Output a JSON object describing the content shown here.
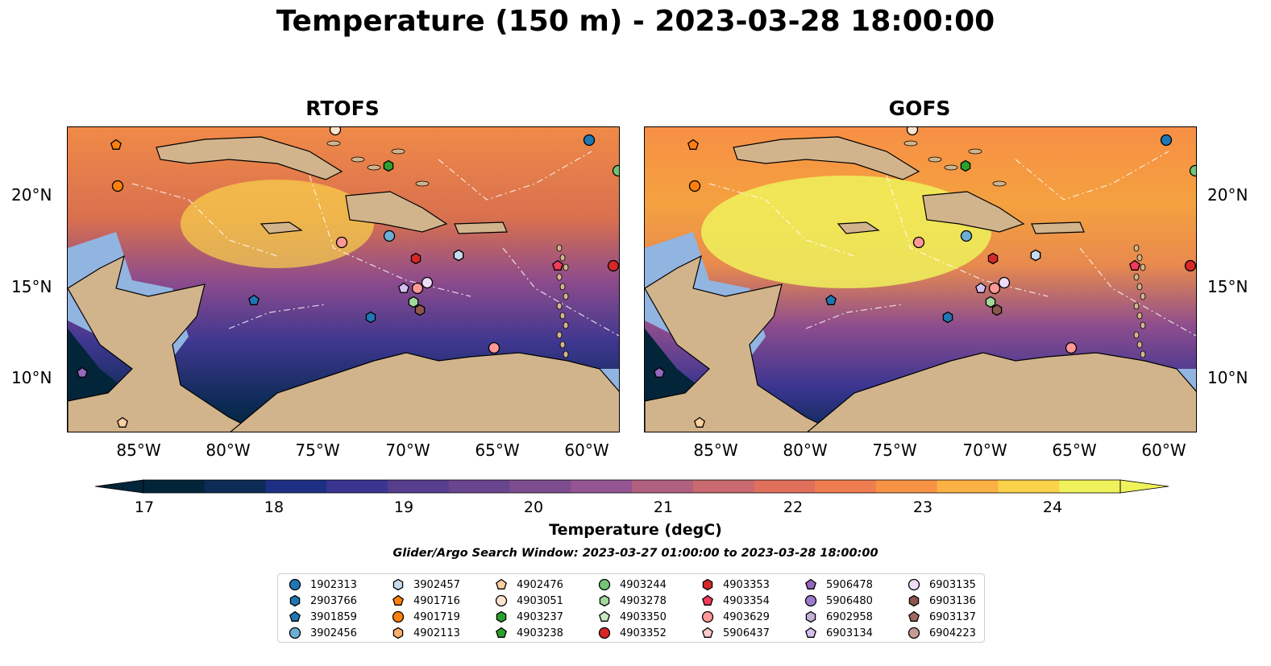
{
  "title": "Temperature (150 m) - 2023-03-28 18:00:00",
  "panels": [
    {
      "title": "RTOFS"
    },
    {
      "title": "GOFS"
    }
  ],
  "lat_ticks": [
    "20°N",
    "15°N",
    "10°N"
  ],
  "lon_ticks": [
    "85°W",
    "80°W",
    "75°W",
    "70°W",
    "65°W",
    "60°W"
  ],
  "colorbar": {
    "label": "Temperature (degC)",
    "ticks": [
      "17",
      "18",
      "19",
      "20",
      "21",
      "22",
      "23",
      "24"
    ],
    "range": [
      17,
      24.5
    ],
    "colors": [
      "#03253a",
      "#0d2b56",
      "#1e2f86",
      "#3a3591",
      "#563d8e",
      "#6a458f",
      "#7e4d8f",
      "#955592",
      "#b1607f",
      "#c86a6f",
      "#e06f5b",
      "#f07d4f",
      "#f89346",
      "#fcb144",
      "#fad34a",
      "#eff25a"
    ]
  },
  "search_window": "Glider/Argo Search Window: 2023-03-27 01:00:00 to 2023-03-28 18:00:00",
  "legend": [
    {
      "id": "1902313",
      "color": "#1f77b4",
      "marker": "circle"
    },
    {
      "id": "2903766",
      "color": "#1f77b4",
      "marker": "hexagon"
    },
    {
      "id": "3901859",
      "color": "#1f77b4",
      "marker": "pentagon"
    },
    {
      "id": "3902456",
      "color": "#6baed6",
      "marker": "circle"
    },
    {
      "id": "3902457",
      "color": "#c6dbef",
      "marker": "hexagon"
    },
    {
      "id": "4901716",
      "color": "#ff7f0e",
      "marker": "pentagon"
    },
    {
      "id": "4901719",
      "color": "#ff7f0e",
      "marker": "circle"
    },
    {
      "id": "4902113",
      "color": "#fdae6b",
      "marker": "hexagon"
    },
    {
      "id": "4902476",
      "color": "#fdd0a2",
      "marker": "pentagon"
    },
    {
      "id": "4903051",
      "color": "#fde4cc",
      "marker": "circle"
    },
    {
      "id": "4903237",
      "color": "#2ca02c",
      "marker": "hexagon"
    },
    {
      "id": "4903238",
      "color": "#2ca02c",
      "marker": "pentagon"
    },
    {
      "id": "4903244",
      "color": "#74c476",
      "marker": "circle"
    },
    {
      "id": "4903278",
      "color": "#a1d99b",
      "marker": "hexagon"
    },
    {
      "id": "4903350",
      "color": "#c7e9c0",
      "marker": "pentagon"
    },
    {
      "id": "4903352",
      "color": "#d62728",
      "marker": "circle"
    },
    {
      "id": "4903353",
      "color": "#d62728",
      "marker": "hexagon"
    },
    {
      "id": "4903354",
      "color": "#f03b5a",
      "marker": "pentagon"
    },
    {
      "id": "4903629",
      "color": "#ff9896",
      "marker": "circle"
    },
    {
      "id": "5906437",
      "color": "#ffc9c9",
      "marker": "pentagon"
    },
    {
      "id": "5906478",
      "color": "#9467bd",
      "marker": "pentagon"
    },
    {
      "id": "5906480",
      "color": "#9e7bd0",
      "marker": "circle"
    },
    {
      "id": "6902958",
      "color": "#c5b0d5",
      "marker": "hexagon"
    },
    {
      "id": "6903134",
      "color": "#d5c0f0",
      "marker": "pentagon"
    },
    {
      "id": "6903135",
      "color": "#eedcf8",
      "marker": "circle"
    },
    {
      "id": "6903136",
      "color": "#8c564b",
      "marker": "hexagon"
    },
    {
      "id": "6903137",
      "color": "#a0695e",
      "marker": "pentagon"
    },
    {
      "id": "6904223",
      "color": "#c49c94",
      "marker": "circle"
    }
  ]
}
